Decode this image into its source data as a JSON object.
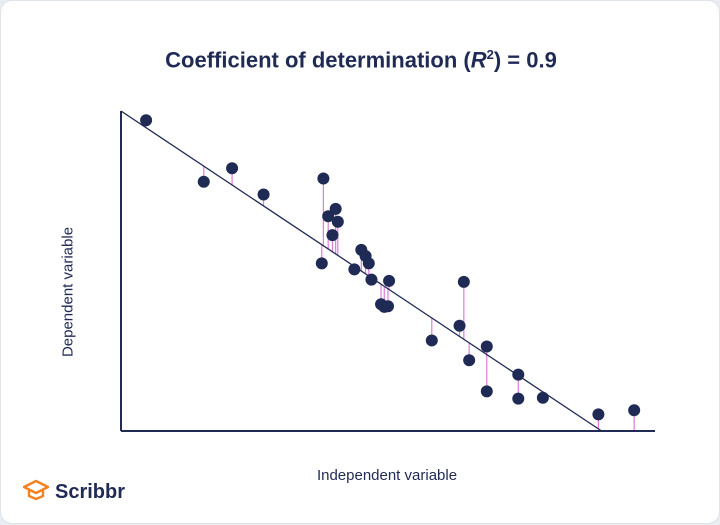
{
  "chart_data": {
    "type": "scatter",
    "title_prefix": "Coefficient of determination (",
    "title_symbol": "R",
    "title_sup": "2",
    "title_suffix": ") = 0.9",
    "xlabel": "Independent variable",
    "ylabel": "Dependent variable",
    "xlim": [
      0,
      100
    ],
    "ylim": [
      0,
      100
    ],
    "grid": false,
    "axes": "left-bottom",
    "regression_line": {
      "x": [
        0,
        90
      ],
      "y": [
        100,
        0
      ]
    },
    "residuals_shown": true,
    "colors": {
      "points": "#1f2a55",
      "line": "#1f2a55",
      "residual": "#e07bd8",
      "axis": "#1f2a55"
    },
    "points": [
      {
        "x": 4.7,
        "y": 97.1
      },
      {
        "x": 15.5,
        "y": 77.9
      },
      {
        "x": 20.8,
        "y": 82.1
      },
      {
        "x": 26.7,
        "y": 73.9
      },
      {
        "x": 37.6,
        "y": 52.4
      },
      {
        "x": 37.9,
        "y": 78.9
      },
      {
        "x": 38.8,
        "y": 67.1
      },
      {
        "x": 39.6,
        "y": 61.2
      },
      {
        "x": 40.2,
        "y": 69.4
      },
      {
        "x": 40.6,
        "y": 65.4
      },
      {
        "x": 43.7,
        "y": 50.5
      },
      {
        "x": 45.0,
        "y": 56.6
      },
      {
        "x": 45.8,
        "y": 54.7
      },
      {
        "x": 46.4,
        "y": 52.4
      },
      {
        "x": 46.9,
        "y": 47.3
      },
      {
        "x": 48.7,
        "y": 39.6
      },
      {
        "x": 49.3,
        "y": 38.8
      },
      {
        "x": 50.0,
        "y": 39.0
      },
      {
        "x": 50.2,
        "y": 46.9
      },
      {
        "x": 58.2,
        "y": 28.3
      },
      {
        "x": 63.4,
        "y": 32.9
      },
      {
        "x": 64.2,
        "y": 46.6
      },
      {
        "x": 65.2,
        "y": 22.1
      },
      {
        "x": 68.5,
        "y": 26.4
      },
      {
        "x": 68.5,
        "y": 12.4
      },
      {
        "x": 74.4,
        "y": 17.6
      },
      {
        "x": 74.4,
        "y": 10.1
      },
      {
        "x": 79.0,
        "y": 10.4
      },
      {
        "x": 89.4,
        "y": 5.2
      },
      {
        "x": 96.1,
        "y": 6.5
      }
    ]
  },
  "brand": {
    "name": "Scribbr",
    "icon": "graduation-cap-icon",
    "color": "#f58220"
  }
}
